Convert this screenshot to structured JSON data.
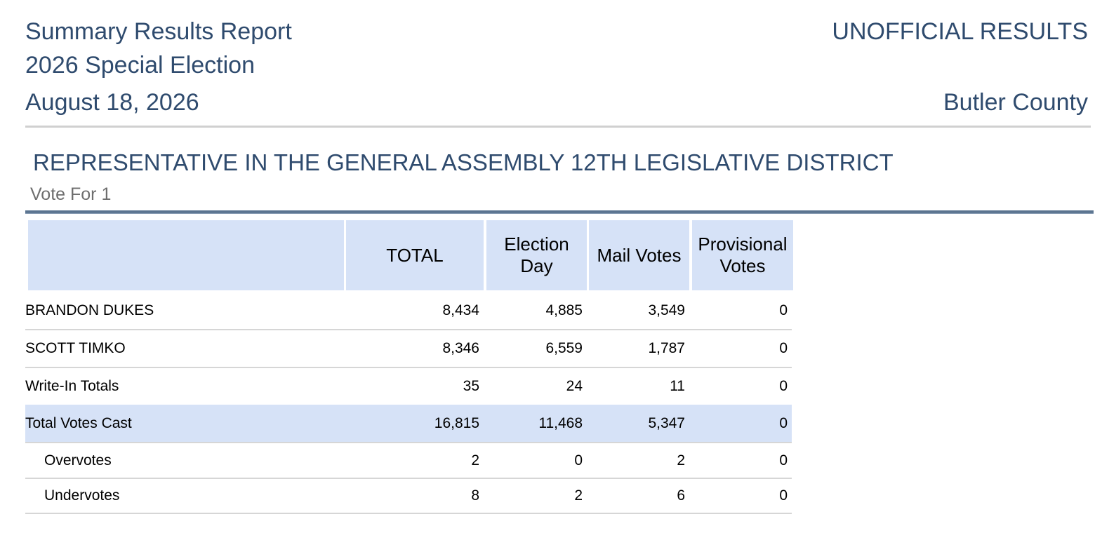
{
  "report": {
    "title": "Summary Results Report",
    "election": "2026 Special Election",
    "date": "August 18, 2026",
    "status": "UNOFFICIAL RESULTS",
    "county": "Butler County"
  },
  "contest": {
    "title": "REPRESENTATIVE IN THE GENERAL ASSEMBLY 12TH LEGISLATIVE DISTRICT",
    "vote_for": "Vote For 1"
  },
  "table": {
    "columns": [
      "",
      "TOTAL",
      "Election Day",
      "Mail Votes",
      "Provisional Votes"
    ],
    "header_color": "#d6e2f7",
    "rows": [
      {
        "label": "BRANDON DUKES",
        "total": "8,434",
        "election_day": "4,885",
        "mail": "3,549",
        "provisional": "0"
      },
      {
        "label": "SCOTT TIMKO",
        "total": "8,346",
        "election_day": "6,559",
        "mail": "1,787",
        "provisional": "0"
      },
      {
        "label": "Write-In Totals",
        "total": "35",
        "election_day": "24",
        "mail": "11",
        "provisional": "0"
      },
      {
        "label": "Total Votes Cast",
        "total": "16,815",
        "election_day": "11,468",
        "mail": "5,347",
        "provisional": "0"
      },
      {
        "label": "Overvotes",
        "total": "2",
        "election_day": "0",
        "mail": "2",
        "provisional": "0"
      },
      {
        "label": "Undervotes",
        "total": "8",
        "election_day": "2",
        "mail": "6",
        "provisional": "0"
      }
    ]
  },
  "colors": {
    "heading_text": "#2f4b6e",
    "subtle_text": "#6e6e6e",
    "row_highlight": "#d6e2f7"
  }
}
